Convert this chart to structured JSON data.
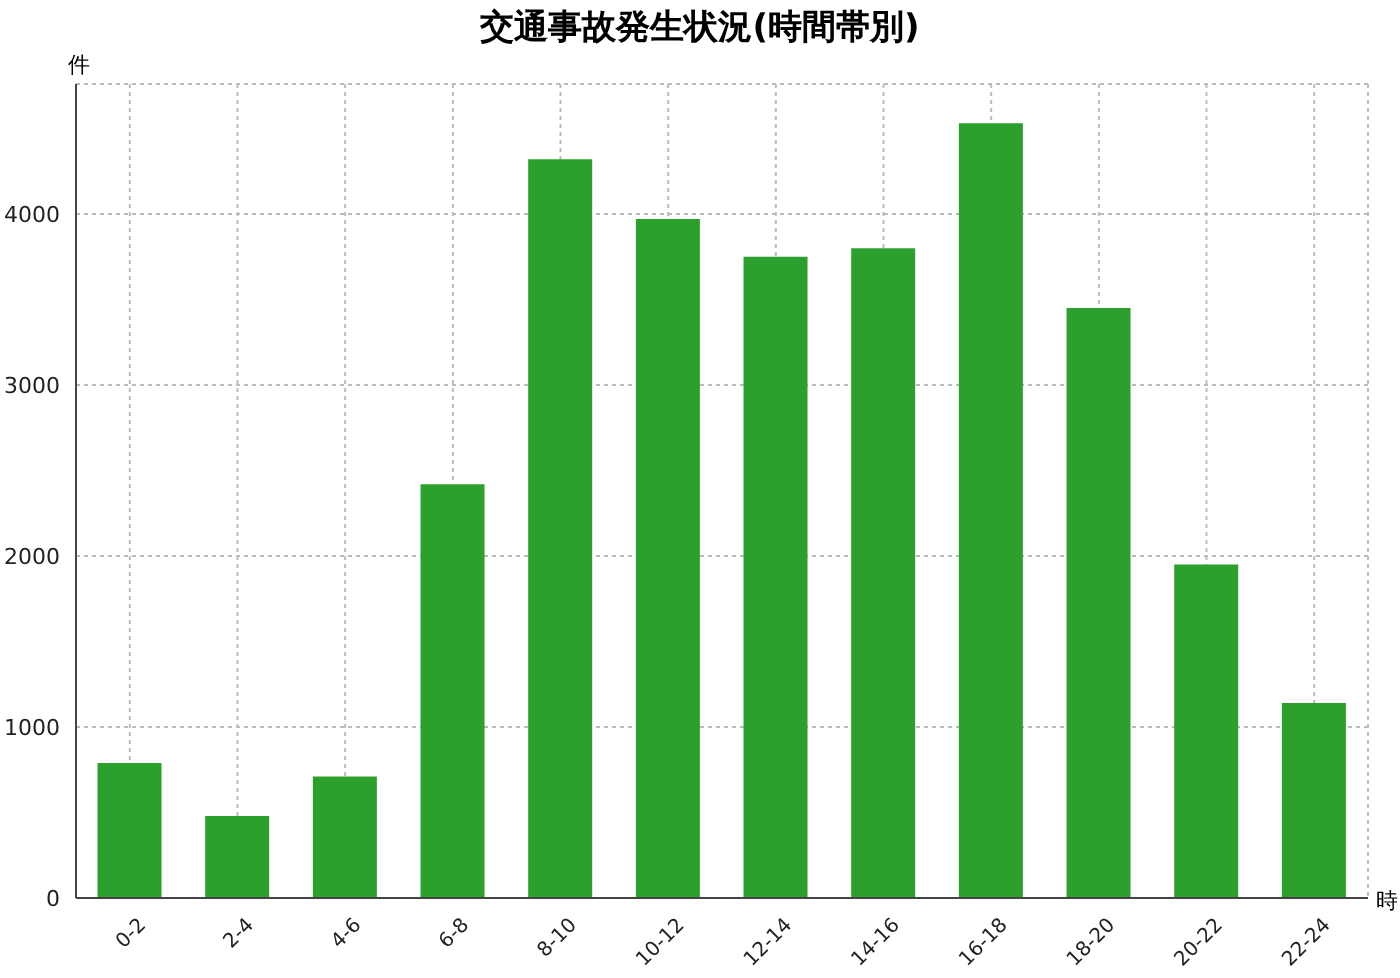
{
  "chart_data": {
    "type": "bar",
    "title": "交通事故発生状況(時間帯別)",
    "xlabel": "時",
    "ylabel": "件",
    "categories": [
      "0-2",
      "2-4",
      "4-6",
      "6-8",
      "8-10",
      "10-12",
      "12-14",
      "14-16",
      "16-18",
      "18-20",
      "20-22",
      "22-24"
    ],
    "values": [
      790,
      480,
      710,
      2420,
      4320,
      3970,
      3750,
      3800,
      4530,
      3450,
      1950,
      1140
    ],
    "color": "#2ca02c",
    "ylim": [
      0,
      4760
    ],
    "yticks": [
      0,
      1000,
      2000,
      3000,
      4000
    ],
    "grid": true
  }
}
